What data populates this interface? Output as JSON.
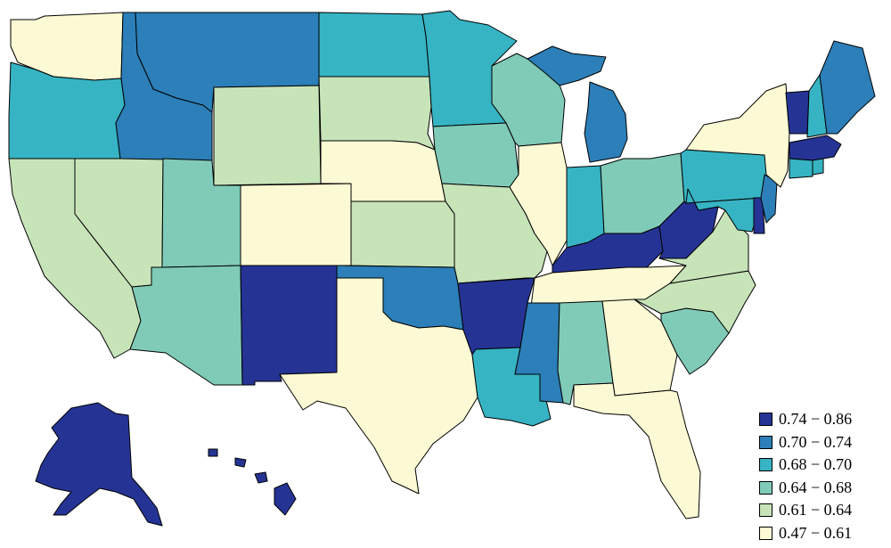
{
  "palette": {
    "c1": "#253494",
    "c2": "#2c7fb8",
    "c3": "#36b4c4",
    "c4": "#80cbb8",
    "c5": "#c7e4b9",
    "c6": "#fcfad4"
  },
  "legend": [
    {
      "label": "0.74 − 0.86",
      "color": "#253494"
    },
    {
      "label": "0.70 − 0.74",
      "color": "#2c7fb8"
    },
    {
      "label": "0.68 − 0.70",
      "color": "#36b4c4"
    },
    {
      "label": "0.64 − 0.68",
      "color": "#80cbb8"
    },
    {
      "label": "0.61 − 0.64",
      "color": "#c7e4b9"
    },
    {
      "label": "0.47 − 0.61",
      "color": "#fcfad4"
    }
  ]
}
